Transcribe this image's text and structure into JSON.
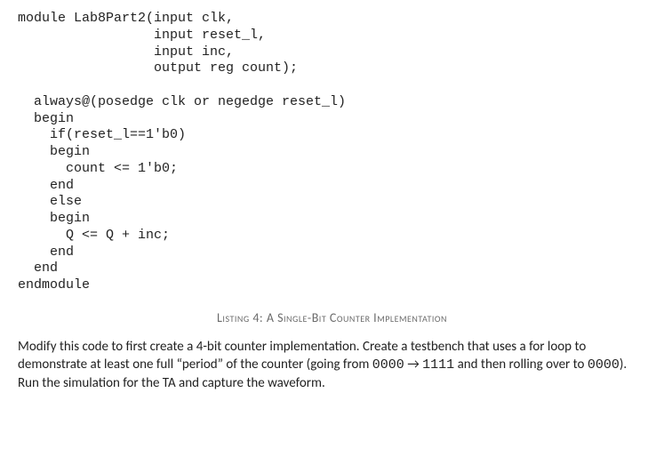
{
  "code": {
    "font_family": "Consolas",
    "font_size_pt": 11,
    "color": "#222222",
    "l01": "module Lab8Part2(input clk,",
    "l02": "                 input reset_l,",
    "l03": "                 input inc,",
    "l04": "                 output reg count);",
    "l05": "",
    "l06": "  always@(posedge clk or negedge reset_l)",
    "l07": "  begin",
    "l08": "    if(reset_l==1'b0)",
    "l09": "    begin",
    "l10": "      count <= 1'b0;",
    "l11": "    end",
    "l12": "    else",
    "l13": "    begin",
    "l14": "      Q <= Q + inc;",
    "l15": "    end",
    "l16": "  end",
    "l17": "endmodule"
  },
  "caption": {
    "prefix": "Listing ",
    "number": "4",
    "suffix": ": A Single-Bit Counter Implementation",
    "color": "#6b6b6b",
    "font_size_pt": 11
  },
  "paragraph": {
    "text_a": "Modify this code to first create a 4-bit counter implementation. Create a testbench that uses a for loop to demonstrate at least one full “period” of the counter (going from ",
    "code_a": "0000",
    "arrow": " → ",
    "code_b": "1111",
    "text_b": " and then rolling over to ",
    "code_c": "0000",
    "text_c": "). Run the simulation for the TA and capture the waveform.",
    "font_size_pt": 11,
    "color": "#222222"
  },
  "page_background": "#ffffff"
}
